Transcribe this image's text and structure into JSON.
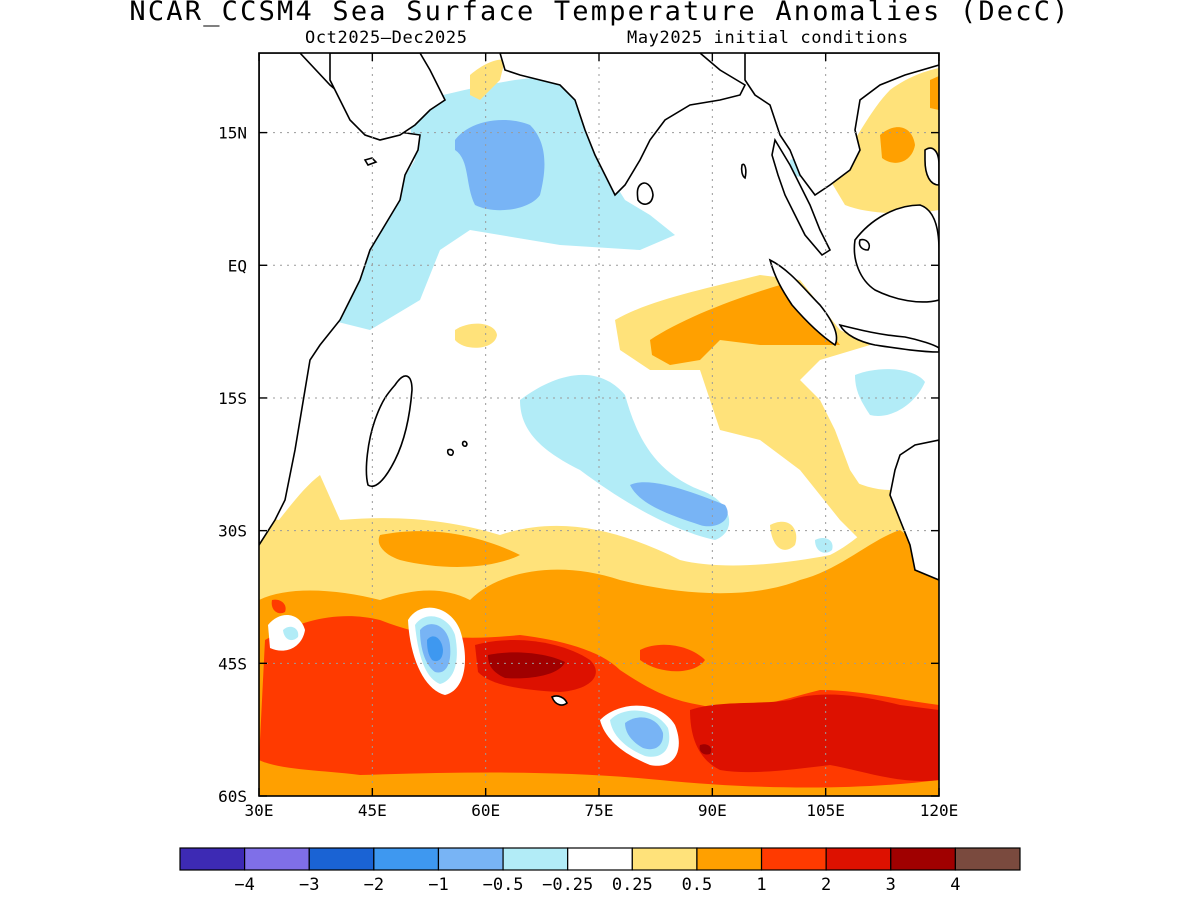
{
  "title": "NCAR_CCSM4 Sea Surface Temperature Anomalies (DecC)",
  "subtitle_left": "Oct2025–Dec2025",
  "subtitle_right": "May2025 initial conditions",
  "map": {
    "region": "Indian Ocean",
    "lon_range": [
      30,
      120
    ],
    "lat_range": [
      -60,
      24
    ],
    "x_tick_labels": [
      "30E",
      "45E",
      "60E",
      "75E",
      "90E",
      "105E",
      "120E"
    ],
    "x_tick_values": [
      30,
      45,
      60,
      75,
      90,
      105,
      120
    ],
    "y_tick_labels": [
      "15N",
      "EQ",
      "15S",
      "30S",
      "45S",
      "60S"
    ],
    "y_tick_values": [
      15,
      0,
      -15,
      -30,
      -45,
      -60
    ],
    "grid": "dotted"
  },
  "colorbar": {
    "colors": [
      "#3d2ab4",
      "#7f6fe8",
      "#1a63d4",
      "#3e98f0",
      "#78b4f5",
      "#b2ecf7",
      "#ffffff",
      "#ffe27a",
      "#ffa000",
      "#ff3a00",
      "#dd1100",
      "#a00000",
      "#7a4a3e"
    ],
    "labels": [
      "−4",
      "−3",
      "−2",
      "−1",
      "−0.5",
      "−0.25",
      "0.25",
      "0.5",
      "1",
      "2",
      "3",
      "4"
    ]
  }
}
